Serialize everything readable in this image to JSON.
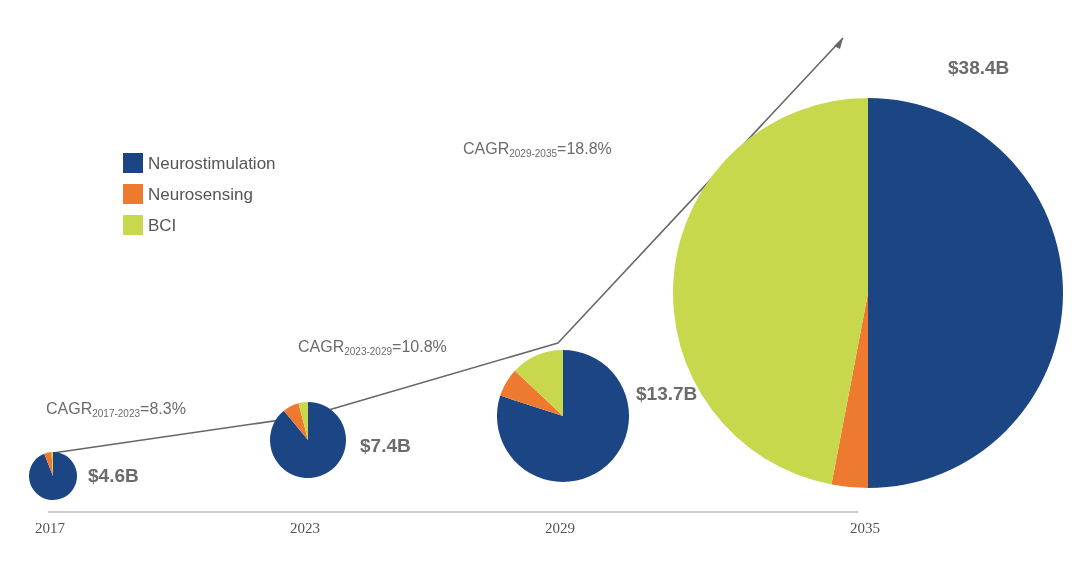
{
  "chart_data": {
    "type": "pie",
    "categories": [
      "Neurostimulation",
      "Neurosensing",
      "BCI"
    ],
    "colors": [
      "#1b4683",
      "#ee7a30",
      "#c8d84c"
    ],
    "legend": "top left",
    "series": [
      {
        "name": "2017",
        "values": [
          94,
          5,
          1
        ]
      },
      {
        "name": "2023",
        "values": [
          89,
          7,
          4
        ]
      },
      {
        "name": "2029",
        "values": [
          80,
          7,
          13
        ]
      },
      {
        "name": "2035",
        "values": [
          50,
          3,
          47
        ]
      }
    ],
    "annotations": [
      "$4.6B",
      "$7.4B",
      "$13.7B",
      "$38.4B",
      "CAGR$_{2017-2023}$=8.3%",
      "CAGR$_{2023-2029}$=10.8%",
      "CAGR$_{2029-2035}$=18.8%"
    ]
  }
}
